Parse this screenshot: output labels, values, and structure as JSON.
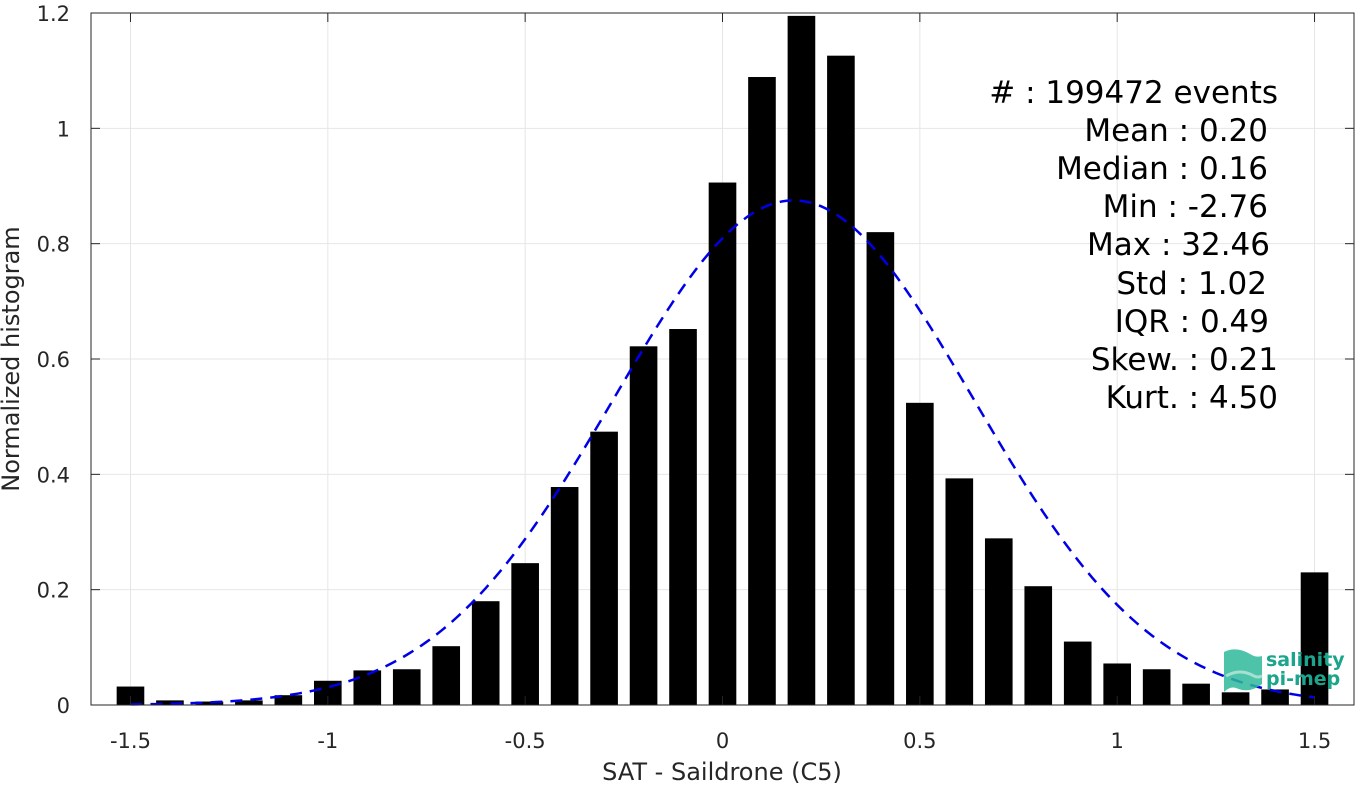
{
  "chart_data": {
    "type": "bar",
    "title": "",
    "xlabel": "SAT - Saildrone (C5)",
    "ylabel": "Normalized histogram",
    "xlim": [
      -1.6,
      1.6
    ],
    "ylim": [
      0,
      1.2
    ],
    "grid": true,
    "x_ticks": [
      -1.5,
      -1,
      -0.5,
      0,
      0.5,
      1,
      1.5
    ],
    "x_tick_labels": [
      "-1.5",
      "-1",
      "-0.5",
      "0",
      "0.5",
      "1",
      "1.5"
    ],
    "y_ticks": [
      0,
      0.2,
      0.4,
      0.6,
      0.8,
      1,
      1.2
    ],
    "y_tick_labels": [
      "0",
      "0.2",
      "0.4",
      "0.6",
      "0.8",
      "1",
      "1.2"
    ],
    "bar_color": "#000000",
    "x": [
      -1.5,
      -1.4,
      -1.3,
      -1.2,
      -1.1,
      -1.0,
      -0.9,
      -0.8,
      -0.7,
      -0.6,
      -0.5,
      -0.4,
      -0.3,
      -0.2,
      -0.1,
      0.0,
      0.1,
      0.2,
      0.3,
      0.4,
      0.5,
      0.6,
      0.7,
      0.8,
      0.9,
      1.0,
      1.1,
      1.2,
      1.3,
      1.4,
      1.5
    ],
    "values": [
      0.032,
      0.008,
      0.006,
      0.008,
      0.017,
      0.042,
      0.06,
      0.062,
      0.102,
      0.18,
      0.246,
      0.378,
      0.474,
      0.622,
      0.652,
      0.906,
      1.089,
      1.195,
      1.126,
      0.82,
      0.524,
      0.393,
      0.289,
      0.206,
      0.11,
      0.072,
      0.062,
      0.037,
      0.022,
      0.027,
      0.23
    ],
    "fit": {
      "type": "gaussian",
      "style": "dashed",
      "color": "#0000e6",
      "mean": 0.18,
      "std": 0.456,
      "peak": 0.875,
      "x_range": [
        -1.5,
        1.5
      ]
    },
    "stats": [
      "#  : 199472 events",
      "Mean : 0.20",
      "Median : 0.16",
      "Min : -2.76",
      "Max : 32.46",
      "Std : 1.02",
      "IQR : 0.49",
      "Skew. : 0.21",
      "Kurt. : 4.50"
    ]
  },
  "logo": {
    "line1": "salinity",
    "line2": "pi-mep",
    "color": "#1aa58c"
  }
}
